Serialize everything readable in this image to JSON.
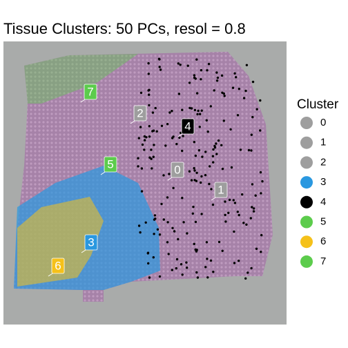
{
  "title": "Tissue Clusters: 50 PCs, resol = 0.8",
  "legend": {
    "title": "Cluster",
    "items": [
      {
        "label": "0",
        "color": "#9e9e9e"
      },
      {
        "label": "1",
        "color": "#9e9e9e"
      },
      {
        "label": "2",
        "color": "#9e9e9e"
      },
      {
        "label": "3",
        "color": "#2a98e0"
      },
      {
        "label": "4",
        "color": "#000000"
      },
      {
        "label": "5",
        "color": "#5ccc4c"
      },
      {
        "label": "6",
        "color": "#f5c11a"
      },
      {
        "label": "7",
        "color": "#5ccc4c"
      }
    ]
  },
  "cluster_labels": [
    {
      "label": "7",
      "color": "#5ccc4c"
    },
    {
      "label": "2",
      "color": "#9e9e9e"
    },
    {
      "label": "4",
      "color": "#000000"
    },
    {
      "label": "5",
      "color": "#5ccc4c"
    },
    {
      "label": "0",
      "color": "#9e9e9e"
    },
    {
      "label": "1",
      "color": "#9e9e9e"
    },
    {
      "label": "3",
      "color": "#2a98e0"
    },
    {
      "label": "6",
      "color": "#f5c11a"
    }
  ]
}
